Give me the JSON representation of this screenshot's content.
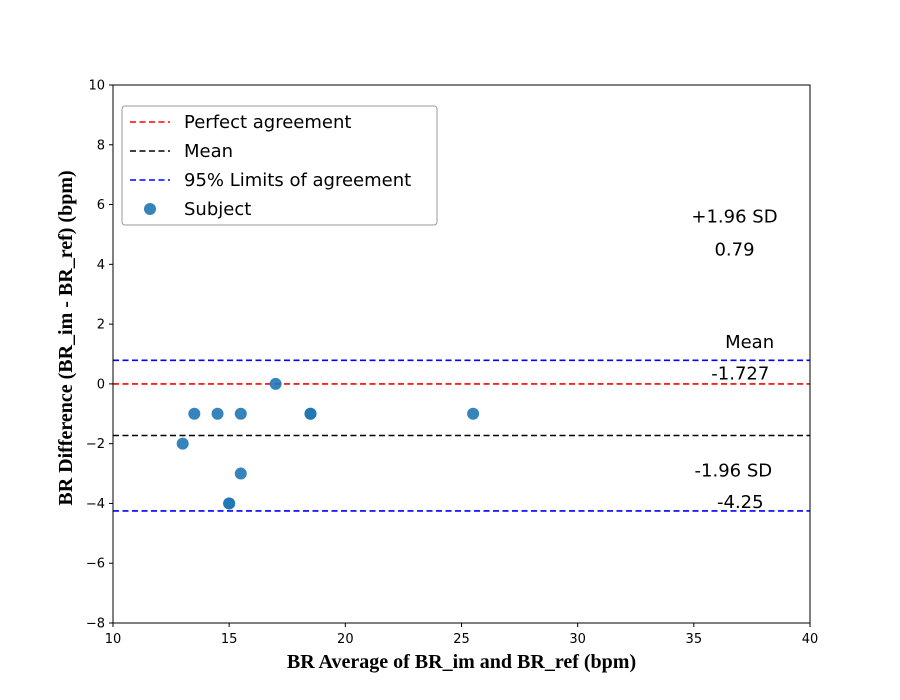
{
  "chart_data": {
    "type": "scatter",
    "title": "",
    "xlabel": "BR Average of BR_im and BR_ref (bpm)",
    "ylabel": "BR Difference (BR_im - BR_ref) (bpm)",
    "xlim": [
      10,
      40
    ],
    "ylim": [
      -8,
      10
    ],
    "xticks": [
      10,
      15,
      20,
      25,
      30,
      35,
      40
    ],
    "yticks": [
      -8,
      -6,
      -4,
      -2,
      0,
      2,
      4,
      6,
      8,
      10
    ],
    "xtick_labels": [
      "10",
      "15",
      "20",
      "25",
      "30",
      "35",
      "40"
    ],
    "ytick_labels": [
      "−8",
      "−6",
      "−4",
      "−2",
      "0",
      "2",
      "4",
      "6",
      "8",
      "10"
    ],
    "grid": false,
    "legend_placement": "upper-left",
    "points": {
      "name": "Subject",
      "color": "#1f77b4",
      "x": [
        13,
        13.5,
        14.5,
        15,
        15,
        15.5,
        15.5,
        17,
        18.5,
        18.5,
        25.5
      ],
      "y": [
        -2,
        -1,
        -1,
        -4,
        -4,
        -1,
        -3,
        0,
        -1,
        -1,
        -1
      ]
    },
    "lines": [
      {
        "name": "Perfect agreement",
        "y": 0,
        "color": "#ff0000",
        "style": "dashed"
      },
      {
        "name": "Mean",
        "y": -1.727,
        "color": "#000000",
        "style": "dashed"
      },
      {
        "name": "95% Limits of agreement",
        "y": 0.79,
        "color": "#0000ff",
        "style": "dashed"
      },
      {
        "name": "95% Limits of agreement",
        "y": -4.25,
        "color": "#0000ff",
        "style": "dashed"
      }
    ],
    "legend": [
      {
        "label": "Perfect agreement",
        "kind": "line",
        "color": "#ff0000"
      },
      {
        "label": "Mean",
        "kind": "line",
        "color": "#000000"
      },
      {
        "label": "95% Limits of agreement",
        "kind": "line",
        "color": "#0000ff"
      },
      {
        "label": "Subject",
        "kind": "marker",
        "color": "#1f77b4"
      }
    ],
    "annotations": [
      {
        "text": "+1.96 SD",
        "x": 36.75,
        "y": 5.4
      },
      {
        "text": "0.79",
        "x": 36.75,
        "y": 4.3
      },
      {
        "text": "Mean",
        "x": 37.4,
        "y": 1.2
      },
      {
        "text": "-1.727",
        "x": 37.0,
        "y": 0.15
      },
      {
        "text": "-1.96 SD",
        "x": 36.7,
        "y": -3.1
      },
      {
        "text": "-4.25",
        "x": 37.0,
        "y": -4.15
      }
    ]
  }
}
